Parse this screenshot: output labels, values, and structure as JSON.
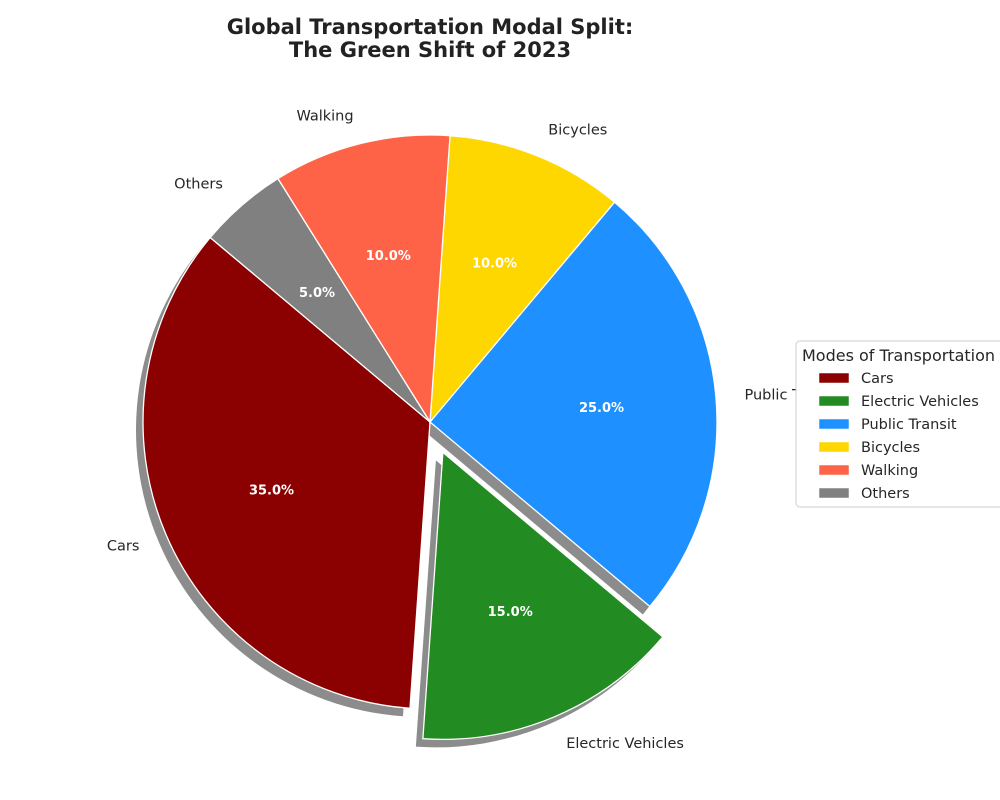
{
  "chart_data": {
    "type": "pie",
    "title_lines": [
      "Global Transportation Modal Split:",
      "The Green Shift of 2023"
    ],
    "categories": [
      "Cars",
      "Electric Vehicles",
      "Public Transit",
      "Bicycles",
      "Walking",
      "Others"
    ],
    "values": [
      35,
      15,
      25,
      10,
      10,
      5
    ],
    "percent_labels": [
      "35.0%",
      "15.0%",
      "25.0%",
      "10.0%",
      "10.0%",
      "5.0%"
    ],
    "colors": [
      "#8b0000",
      "#228b22",
      "#1e90ff",
      "#ffd700",
      "#ff6347",
      "#808080"
    ],
    "exploded": [
      "Electric Vehicles"
    ],
    "shadow": true,
    "direction": "counterclockwise",
    "legend": {
      "title": "Modes of Transportation",
      "placement": "center-right",
      "entries": [
        "Cars",
        "Electric Vehicles",
        "Public Transit",
        "Bicycles",
        "Walking",
        "Others"
      ]
    }
  }
}
